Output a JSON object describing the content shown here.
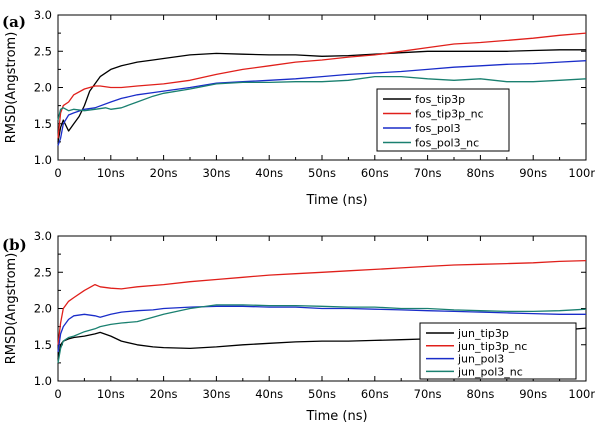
{
  "chart_data": [
    {
      "type": "line",
      "panel_label": "(a)",
      "xlabel": "Time (ns)",
      "ylabel": "RMSD(Angstrom)",
      "xlim": [
        0,
        100
      ],
      "ylim": [
        1.0,
        3.0
      ],
      "x_ticks": [
        0,
        10,
        20,
        30,
        40,
        50,
        60,
        70,
        80,
        90,
        100
      ],
      "x_tick_labels": [
        "0",
        "10ns",
        "20ns",
        "30ns",
        "40ns",
        "50ns",
        "60ns",
        "70ns",
        "80ns",
        "90ns",
        "100ns"
      ],
      "y_ticks": [
        1.0,
        1.5,
        2.0,
        2.5,
        3.0
      ],
      "y_tick_labels": [
        "1.0",
        "1.5",
        "2.0",
        "2.5",
        "3.0"
      ],
      "legend_position": "right",
      "series": [
        {
          "name": "fos_tip3p",
          "color": "#000000",
          "x": [
            0,
            0.5,
            1,
            2,
            3,
            4,
            5,
            6,
            8,
            10,
            12,
            15,
            18,
            20,
            25,
            30,
            35,
            40,
            45,
            50,
            55,
            60,
            65,
            70,
            75,
            80,
            85,
            90,
            95,
            100
          ],
          "y": [
            1.25,
            1.45,
            1.55,
            1.4,
            1.5,
            1.6,
            1.75,
            1.95,
            2.15,
            2.25,
            2.3,
            2.35,
            2.38,
            2.4,
            2.45,
            2.47,
            2.46,
            2.45,
            2.45,
            2.43,
            2.44,
            2.46,
            2.48,
            2.5,
            2.5,
            2.5,
            2.5,
            2.51,
            2.52,
            2.52
          ]
        },
        {
          "name": "fos_tip3p_nc",
          "color": "#e0201b",
          "x": [
            0,
            0.5,
            1,
            2,
            3,
            5,
            7,
            8,
            10,
            12,
            15,
            20,
            25,
            30,
            35,
            40,
            45,
            50,
            55,
            60,
            65,
            70,
            75,
            80,
            85,
            90,
            95,
            100
          ],
          "y": [
            1.3,
            1.65,
            1.75,
            1.8,
            1.9,
            1.98,
            2.02,
            2.02,
            2.0,
            2.0,
            2.02,
            2.05,
            2.1,
            2.18,
            2.25,
            2.3,
            2.35,
            2.38,
            2.42,
            2.45,
            2.5,
            2.55,
            2.6,
            2.62,
            2.65,
            2.68,
            2.72,
            2.75
          ]
        },
        {
          "name": "fos_pol3",
          "color": "#1a2dc9",
          "x": [
            0,
            0.5,
            1,
            2,
            3,
            5,
            7,
            10,
            12,
            15,
            18,
            20,
            25,
            30,
            35,
            40,
            45,
            50,
            55,
            60,
            65,
            70,
            75,
            80,
            85,
            90,
            95,
            100
          ],
          "y": [
            1.2,
            1.3,
            1.5,
            1.62,
            1.65,
            1.7,
            1.72,
            1.8,
            1.85,
            1.9,
            1.93,
            1.95,
            2.0,
            2.06,
            2.08,
            2.1,
            2.12,
            2.15,
            2.18,
            2.2,
            2.22,
            2.25,
            2.28,
            2.3,
            2.32,
            2.33,
            2.35,
            2.37
          ]
        },
        {
          "name": "fos_pol3_nc",
          "color": "#1a8070",
          "x": [
            0,
            0.5,
            1,
            2,
            3,
            5,
            7,
            9,
            10,
            12,
            15,
            18,
            20,
            25,
            30,
            35,
            40,
            45,
            50,
            55,
            60,
            65,
            70,
            75,
            80,
            85,
            90,
            95,
            100
          ],
          "y": [
            1.55,
            1.7,
            1.72,
            1.68,
            1.7,
            1.68,
            1.7,
            1.72,
            1.7,
            1.72,
            1.8,
            1.88,
            1.92,
            1.98,
            2.05,
            2.07,
            2.07,
            2.08,
            2.08,
            2.1,
            2.15,
            2.15,
            2.12,
            2.1,
            2.12,
            2.08,
            2.08,
            2.1,
            2.12
          ]
        }
      ]
    },
    {
      "type": "line",
      "panel_label": "(b)",
      "xlabel": "Time (ns)",
      "ylabel": "RMSD(Angstrom)",
      "xlim": [
        0,
        100
      ],
      "ylim": [
        1.0,
        3.0
      ],
      "x_ticks": [
        0,
        10,
        20,
        30,
        40,
        50,
        60,
        70,
        80,
        90,
        100
      ],
      "x_tick_labels": [
        "0",
        "10ns",
        "20ns",
        "30ns",
        "40ns",
        "50ns",
        "60ns",
        "70ns",
        "80ns",
        "90ns",
        "100ns"
      ],
      "y_ticks": [
        1.0,
        1.5,
        2.0,
        2.5,
        3.0
      ],
      "y_tick_labels": [
        "1.0",
        "1.5",
        "2.0",
        "2.5",
        "3.0"
      ],
      "legend_position": "bottom-right",
      "series": [
        {
          "name": "jun_tip3p",
          "color": "#000000",
          "x": [
            0,
            0.5,
            1,
            2,
            3,
            5,
            7,
            8,
            10,
            12,
            15,
            18,
            20,
            25,
            30,
            35,
            40,
            45,
            50,
            55,
            60,
            65,
            70,
            75,
            80,
            85,
            90,
            95,
            100
          ],
          "y": [
            1.3,
            1.5,
            1.55,
            1.58,
            1.6,
            1.62,
            1.65,
            1.67,
            1.62,
            1.55,
            1.5,
            1.47,
            1.46,
            1.45,
            1.47,
            1.5,
            1.52,
            1.54,
            1.55,
            1.55,
            1.56,
            1.57,
            1.58,
            1.58,
            1.6,
            1.62,
            1.65,
            1.7,
            1.73
          ]
        },
        {
          "name": "jun_tip3p_nc",
          "color": "#e0201b",
          "x": [
            0,
            0.5,
            1,
            2,
            3,
            5,
            7,
            8,
            10,
            12,
            15,
            20,
            25,
            30,
            35,
            40,
            45,
            50,
            55,
            60,
            65,
            70,
            75,
            80,
            85,
            90,
            95,
            100
          ],
          "y": [
            1.5,
            1.8,
            2.0,
            2.1,
            2.15,
            2.25,
            2.33,
            2.3,
            2.28,
            2.27,
            2.3,
            2.33,
            2.37,
            2.4,
            2.43,
            2.46,
            2.48,
            2.5,
            2.52,
            2.54,
            2.56,
            2.58,
            2.6,
            2.61,
            2.62,
            2.63,
            2.65,
            2.66
          ]
        },
        {
          "name": "jun_pol3",
          "color": "#1a2dc9",
          "x": [
            0,
            0.5,
            1,
            2,
            3,
            5,
            7,
            8,
            10,
            12,
            15,
            18,
            20,
            25,
            30,
            35,
            40,
            45,
            50,
            55,
            60,
            65,
            70,
            75,
            80,
            85,
            90,
            95,
            100
          ],
          "y": [
            1.4,
            1.65,
            1.75,
            1.85,
            1.9,
            1.92,
            1.9,
            1.88,
            1.92,
            1.95,
            1.97,
            1.98,
            2.0,
            2.02,
            2.03,
            2.03,
            2.02,
            2.02,
            2.0,
            2.0,
            1.99,
            1.98,
            1.97,
            1.96,
            1.95,
            1.94,
            1.93,
            1.92,
            1.92
          ]
        },
        {
          "name": "jun_pol3_nc",
          "color": "#1a8070",
          "x": [
            0,
            0.5,
            1,
            2,
            3,
            5,
            7,
            8,
            10,
            12,
            15,
            18,
            20,
            25,
            30,
            35,
            40,
            45,
            50,
            55,
            60,
            65,
            70,
            75,
            80,
            85,
            90,
            95,
            100
          ],
          "y": [
            1.25,
            1.45,
            1.55,
            1.6,
            1.62,
            1.68,
            1.72,
            1.75,
            1.78,
            1.8,
            1.82,
            1.88,
            1.92,
            2.0,
            2.05,
            2.05,
            2.04,
            2.04,
            2.03,
            2.02,
            2.02,
            2.0,
            2.0,
            1.98,
            1.97,
            1.96,
            1.96,
            1.97,
            1.99
          ]
        }
      ]
    }
  ]
}
